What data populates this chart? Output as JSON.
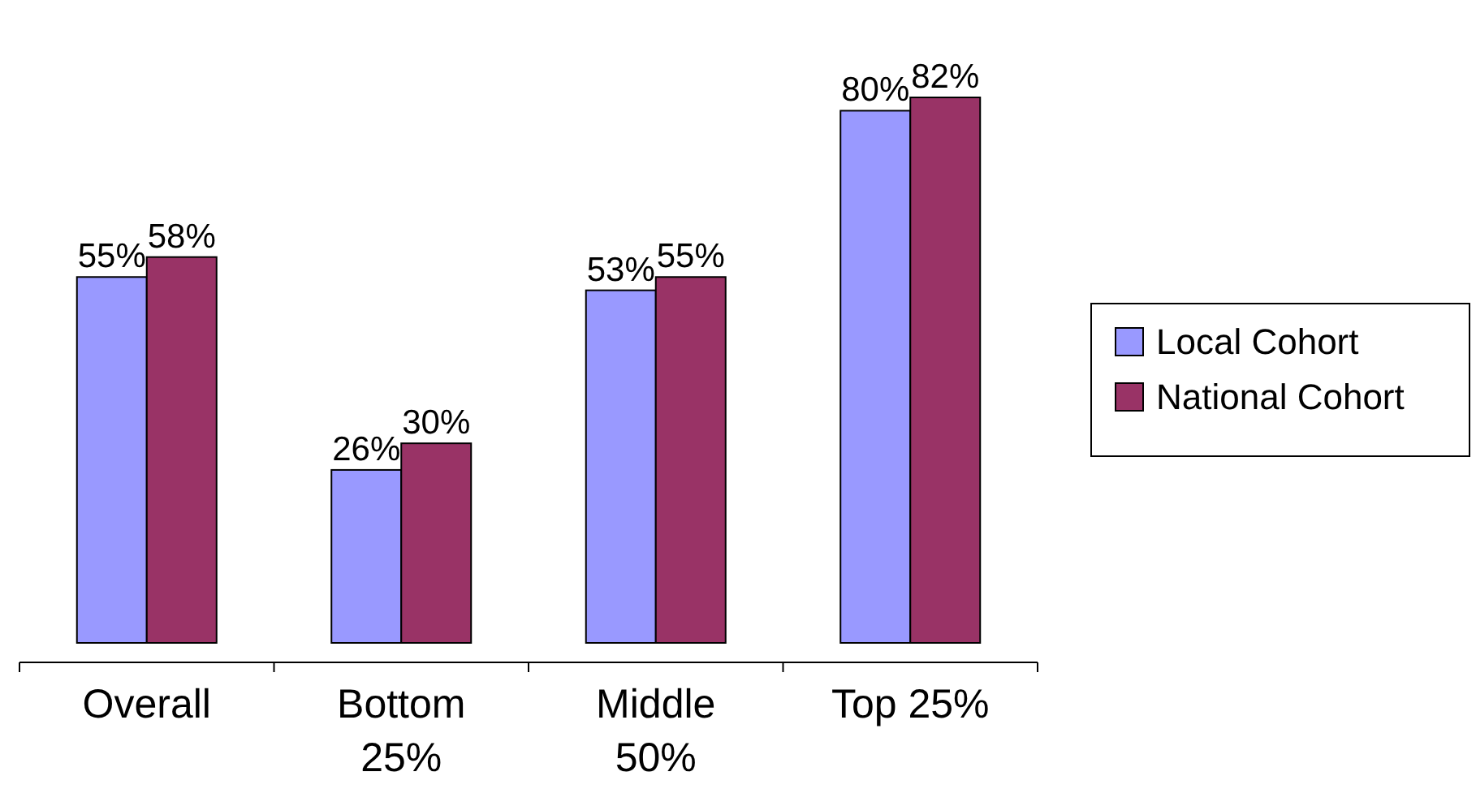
{
  "chart_data": {
    "type": "bar",
    "categories": [
      "Overall",
      "Bottom 25%",
      "Middle 50%",
      "Top 25%"
    ],
    "series": [
      {
        "name": "Local Cohort",
        "color": "#9999ff",
        "values": [
          55,
          26,
          53,
          80
        ],
        "value_labels": [
          "55%",
          "26%",
          "53%",
          "80%"
        ]
      },
      {
        "name": "National Cohort",
        "color": "#993366",
        "values": [
          58,
          30,
          55,
          82
        ],
        "value_labels": [
          "58%",
          "30%",
          "55%",
          "82%"
        ]
      }
    ],
    "relative": false,
    "legend": "right"
  }
}
